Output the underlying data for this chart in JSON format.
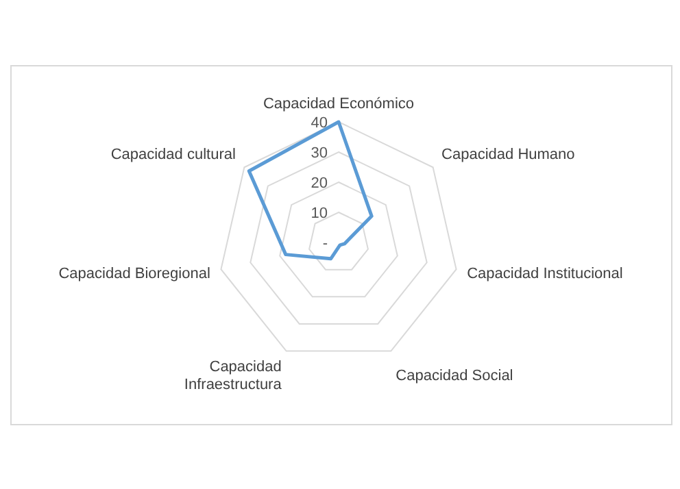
{
  "chart_data": {
    "type": "radar",
    "categories": [
      "Capacidad Económico",
      "Capacidad Humano",
      "Capacidad Institucional",
      "Capacidad Social",
      "Capacidad\nInfraestructura",
      "Capacidad Bioregional",
      "Capacidad cultural"
    ],
    "series": [
      {
        "color": "#5b9bd5",
        "values": [
          40,
          14,
          2,
          1,
          6,
          18,
          38
        ]
      }
    ],
    "ylim": [
      0,
      40
    ],
    "yticks": [
      {
        "value": 0,
        "label": "-"
      },
      10,
      20,
      30,
      40
    ],
    "grid": true
  }
}
